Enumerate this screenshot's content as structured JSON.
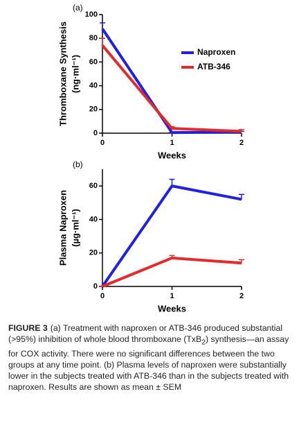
{
  "chart_data": [
    {
      "type": "line",
      "panel": "(a)",
      "ylabel": [
        "Thromboxane Synthesis",
        "(ng·ml⁻¹)"
      ],
      "xlabel": "Weeks",
      "x": [
        0,
        1,
        2
      ],
      "xlim": [
        0,
        2
      ],
      "xticks": [
        0,
        1,
        2
      ],
      "ylim": [
        0,
        100
      ],
      "yticks": [
        0,
        20,
        40,
        60,
        80,
        100
      ],
      "legend": "right",
      "series": [
        {
          "name": "Naproxen",
          "color": "#1f1fe6",
          "values": [
            88,
            0.5,
            1
          ],
          "errors": [
            5,
            0.5,
            0.5
          ]
        },
        {
          "name": "ATB-346",
          "color": "#e32b2b",
          "values": [
            74,
            4,
            1.5
          ],
          "errors": [
            6,
            1.5,
            1.5
          ]
        }
      ]
    },
    {
      "type": "line",
      "panel": "(b)",
      "ylabel": [
        "Plasma Naproxen",
        "(µg·ml⁻¹)"
      ],
      "xlabel": "Weeks",
      "x": [
        0,
        1,
        2
      ],
      "xlim": [
        0,
        2
      ],
      "xticks": [
        0,
        1,
        2
      ],
      "ylim": [
        0,
        70
      ],
      "yticks": [
        0,
        20,
        40,
        60
      ],
      "series": [
        {
          "color": "#1f1fe6",
          "values": [
            0,
            60,
            52
          ],
          "errors": [
            0,
            4,
            3
          ]
        },
        {
          "color": "#e32b2b",
          "values": [
            0,
            17,
            14
          ],
          "errors": [
            0,
            1.5,
            2
          ]
        }
      ]
    }
  ],
  "caption": {
    "label": "FIGURE 3",
    "text_before": "(a) Treatment with naproxen or ATB-346 produced substantial (>95%) inhibition of whole blood thromboxane (TxB",
    "subscript": "2",
    "text_after": ") synthesis—an assay for COX activity. There were no significant differences between the two groups at any time point. (b) Plasma levels of naproxen were substantially lower in the subjects treated with ATB-346 than in the subjects treated with naproxen. Results are shown as mean ± SEM"
  }
}
